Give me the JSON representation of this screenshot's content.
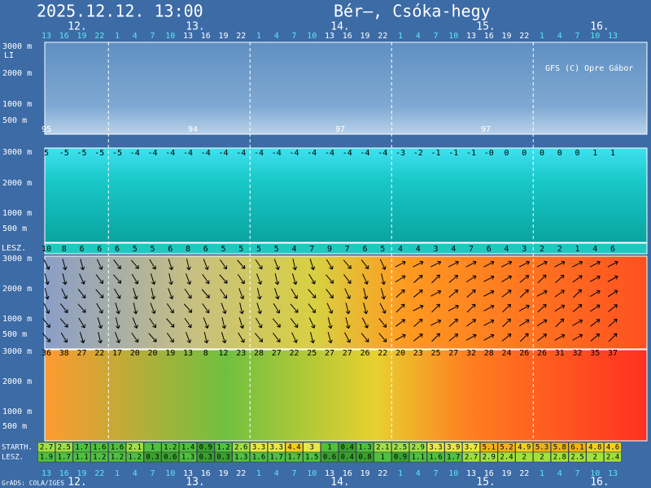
{
  "header": {
    "date": "2025.12.12. 13:00",
    "location": "Bér–, Csóka-hegy"
  },
  "days": [
    "12.",
    "13.",
    "14.",
    "15.",
    "16."
  ],
  "hours": [
    "13",
    "16",
    "19",
    "22",
    "1",
    "4",
    "7",
    "10",
    "13",
    "16",
    "19",
    "22",
    "1",
    "4",
    "7",
    "10",
    "13",
    "16",
    "19",
    "22",
    "1",
    "4",
    "7",
    "10",
    "13",
    "16",
    "19",
    "22",
    "1",
    "4",
    "7",
    "10",
    "13"
  ],
  "credit": "GFS (C) Opre Gábor",
  "grads_credit": "GrADS: COLA/IGES",
  "li_label": "LI",
  "altitude_labels": [
    "3000 m",
    "2000 m",
    "1000 m",
    "500 m"
  ],
  "cloud_labels": [
    "95",
    "94",
    "97",
    "97"
  ],
  "temperature_top_row": [
    "5",
    "-5",
    "-5",
    "-5",
    "-5",
    "-4",
    "-4",
    "-4",
    "-4",
    "-4",
    "-4",
    "-4",
    "-4",
    "-4",
    "-4",
    "-4",
    "-4",
    "-4",
    "-4",
    "-4",
    "-3",
    "-2",
    "-1",
    "-1",
    "-1",
    "-0",
    "0",
    "0",
    "0",
    "0",
    "0",
    "1",
    "1"
  ],
  "lesz_label": "LESZ.",
  "lesz_row": [
    "10",
    "8",
    "6",
    "6",
    "6",
    "5",
    "5",
    "6",
    "8",
    "6",
    "5",
    "5",
    "5",
    "5",
    "4",
    "7",
    "9",
    "7",
    "6",
    "5",
    "4",
    "4",
    "3",
    "4",
    "7",
    "6",
    "4",
    "3",
    "2",
    "2",
    "1",
    "4",
    "6"
  ],
  "wind_speed_top_row": [
    "36",
    "38",
    "27",
    "22",
    "17",
    "20",
    "20",
    "19",
    "13",
    "8",
    "12",
    "23",
    "28",
    "27",
    "22",
    "25",
    "27",
    "27",
    "26",
    "22",
    "20",
    "23",
    "25",
    "27",
    "32",
    "28",
    "24",
    "26",
    "26",
    "31",
    "32",
    "35",
    "37"
  ],
  "starth_label": "STARTH.",
  "starth_row": [
    "2.7",
    "2.5",
    "1.7",
    "1.6",
    "1.6",
    "2.1",
    "1",
    "1.2",
    "1.4",
    "0.9",
    "1.2",
    "2.6",
    "3.3",
    "3.3",
    "4.4",
    "3",
    "1",
    "0.4",
    "1.3",
    "2.1",
    "2.5",
    "2.9",
    "3.3",
    "3.9",
    "3.7",
    "5.1",
    "5.2",
    "4.9",
    "5.3",
    "5.8",
    "6.1",
    "4.8",
    "4.6"
  ],
  "lesz2_label": "LESZ.",
  "lesz2_row": [
    "1.9",
    "1.7",
    "1.1",
    "1.2",
    "1.2",
    "1.2",
    "0.3",
    "0.6",
    "1.3",
    "0.3",
    "0.3",
    "1.3",
    "1.6",
    "1.7",
    "1.7",
    "1.5",
    "0.6",
    "0.4",
    "0.8",
    "1",
    "0.9",
    "1.1",
    "1.6",
    "1.7",
    "2.7",
    "2.9",
    "2.4",
    "2",
    "2",
    "2.8",
    "2.5",
    "2",
    "2.4"
  ]
}
